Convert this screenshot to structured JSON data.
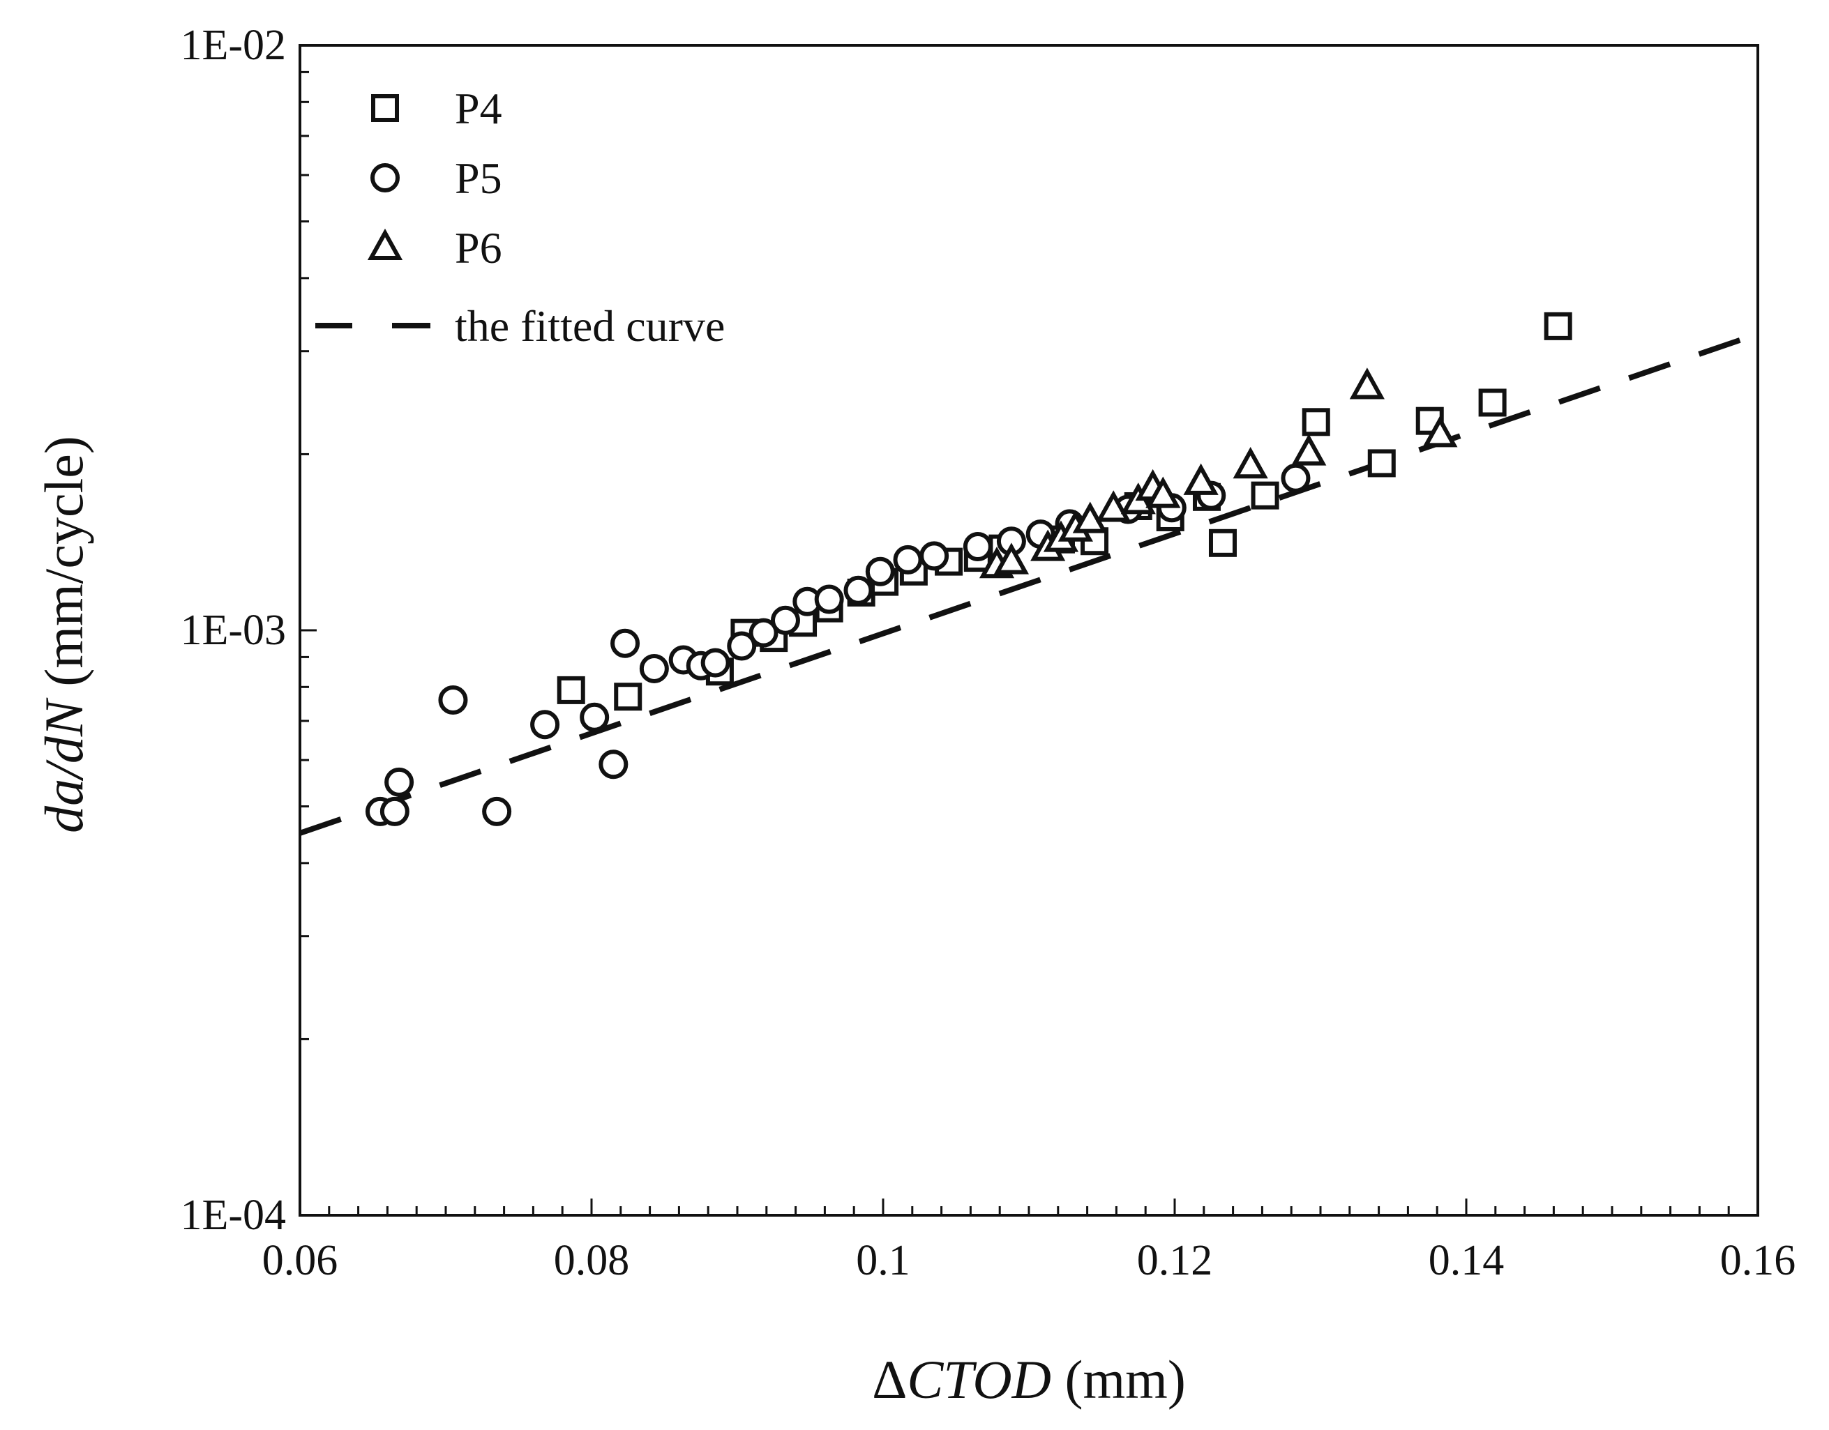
{
  "chart_data": {
    "type": "scatter",
    "x_scale": "linear",
    "y_scale": "log",
    "xlim": [
      0.06,
      0.16
    ],
    "ylim": [
      0.0001,
      0.01
    ],
    "x_ticks": [
      {
        "value": 0.06,
        "label": "0.06"
      },
      {
        "value": 0.08,
        "label": "0.08"
      },
      {
        "value": 0.1,
        "label": "0.1"
      },
      {
        "value": 0.12,
        "label": "0.12"
      },
      {
        "value": 0.14,
        "label": "0.14"
      },
      {
        "value": 0.16,
        "label": "0.16"
      }
    ],
    "y_ticks": [
      {
        "value": 0.01,
        "label": "1E-02"
      },
      {
        "value": 0.001,
        "label": "1E-03"
      },
      {
        "value": 0.0001,
        "label": "1E-04"
      }
    ],
    "xlabel": {
      "symbol": "Δ",
      "italic": "CTOD",
      "unit": " (mm)"
    },
    "ylabel": {
      "italic": "da/dN",
      "unit": " (mm/cycle)"
    },
    "legend_position": "top-left",
    "series": [
      {
        "name": "P4",
        "marker": "square",
        "points": [
          [
            0.0786,
            0.00079
          ],
          [
            0.0825,
            0.00077
          ],
          [
            0.0888,
            0.00085
          ],
          [
            0.0905,
            0.00099
          ],
          [
            0.0925,
            0.00097
          ],
          [
            0.0945,
            0.00103
          ],
          [
            0.0963,
            0.00109
          ],
          [
            0.0985,
            0.00116
          ],
          [
            0.1001,
            0.00121
          ],
          [
            0.1021,
            0.00126
          ],
          [
            0.1045,
            0.00131
          ],
          [
            0.1065,
            0.00133
          ],
          [
            0.1082,
            0.00138
          ],
          [
            0.1122,
            0.00143
          ],
          [
            0.1145,
            0.00142
          ],
          [
            0.1175,
            0.00163
          ],
          [
            0.1197,
            0.00156
          ],
          [
            0.1222,
            0.00169
          ],
          [
            0.1233,
            0.00141
          ],
          [
            0.1262,
            0.0017
          ],
          [
            0.1297,
            0.00227
          ],
          [
            0.1342,
            0.00193
          ],
          [
            0.1375,
            0.00228
          ],
          [
            0.1418,
            0.00245
          ],
          [
            0.1463,
            0.00331
          ]
        ]
      },
      {
        "name": "P5",
        "marker": "circle",
        "points": [
          [
            0.0655,
            0.00049
          ],
          [
            0.0665,
            0.00049
          ],
          [
            0.0668,
            0.00055
          ],
          [
            0.0705,
            0.00076
          ],
          [
            0.0735,
            0.00049
          ],
          [
            0.0768,
            0.00069
          ],
          [
            0.0802,
            0.00071
          ],
          [
            0.0815,
            0.00059
          ],
          [
            0.0823,
            0.00095
          ],
          [
            0.0843,
            0.00086
          ],
          [
            0.0863,
            0.00089
          ],
          [
            0.0875,
            0.00087
          ],
          [
            0.0885,
            0.00088
          ],
          [
            0.0903,
            0.00094
          ],
          [
            0.0918,
            0.00099
          ],
          [
            0.0933,
            0.00104
          ],
          [
            0.0948,
            0.00112
          ],
          [
            0.0963,
            0.00113
          ],
          [
            0.0983,
            0.00117
          ],
          [
            0.0998,
            0.00126
          ],
          [
            0.1017,
            0.00132
          ],
          [
            0.1035,
            0.00134
          ],
          [
            0.1065,
            0.00139
          ],
          [
            0.1088,
            0.00142
          ],
          [
            0.1108,
            0.00146
          ],
          [
            0.1128,
            0.00152
          ],
          [
            0.1168,
            0.00161
          ],
          [
            0.1198,
            0.00162
          ],
          [
            0.1225,
            0.0017
          ],
          [
            0.1283,
            0.00182
          ]
        ]
      },
      {
        "name": "P6",
        "marker": "triangle",
        "points": [
          [
            0.1078,
            0.00129
          ],
          [
            0.1088,
            0.00131
          ],
          [
            0.1113,
            0.00138
          ],
          [
            0.1122,
            0.00143
          ],
          [
            0.1132,
            0.00149
          ],
          [
            0.1142,
            0.00154
          ],
          [
            0.1158,
            0.00161
          ],
          [
            0.1175,
            0.00166
          ],
          [
            0.1185,
            0.00175
          ],
          [
            0.1192,
            0.0017
          ],
          [
            0.1218,
            0.00179
          ],
          [
            0.1252,
            0.00191
          ],
          [
            0.1292,
            0.00201
          ],
          [
            0.1332,
            0.00261
          ],
          [
            0.1382,
            0.00216
          ]
        ]
      }
    ],
    "fitted_curve": {
      "name": "the fitted curve",
      "style": "dashed",
      "points": [
        [
          0.06,
          0.00045
        ],
        [
          0.16,
          0.00321
        ]
      ]
    }
  }
}
